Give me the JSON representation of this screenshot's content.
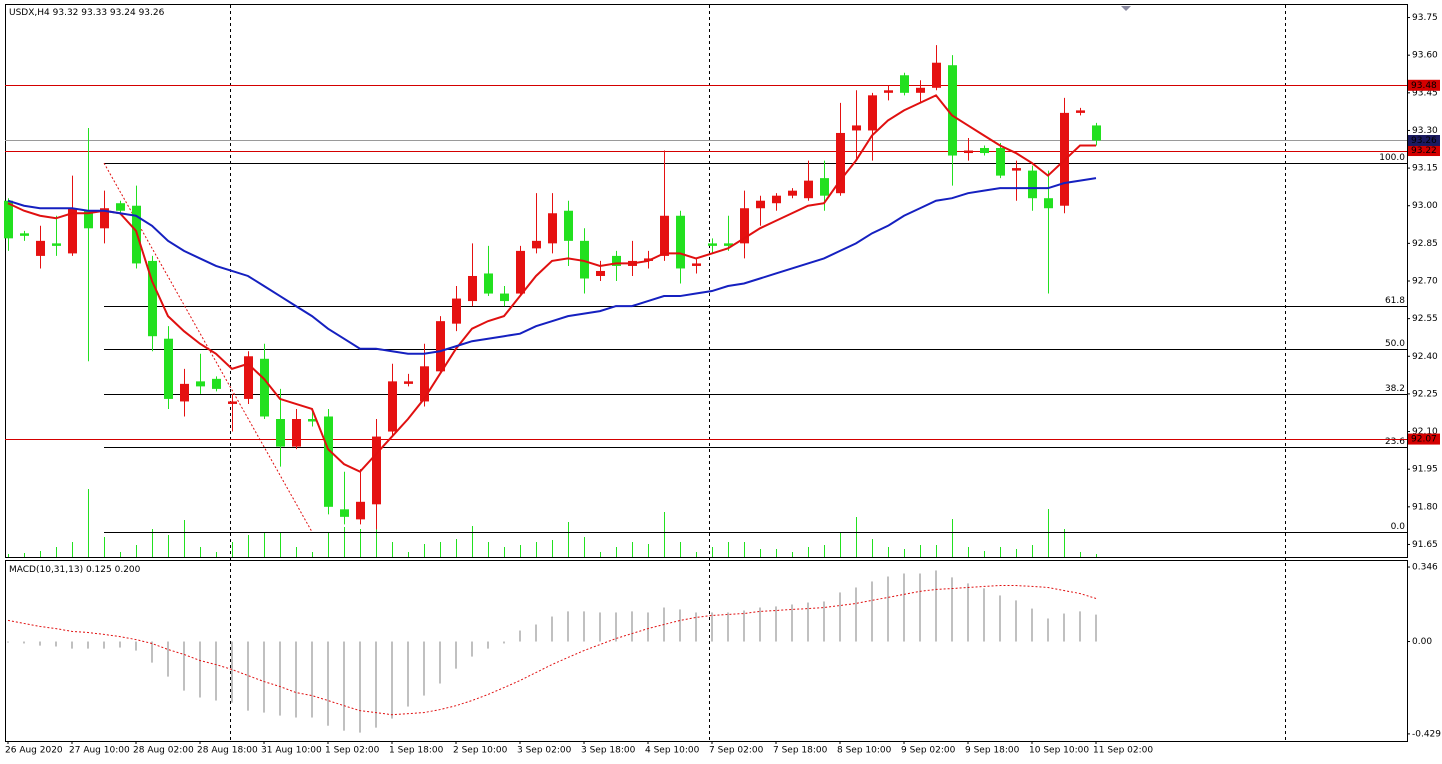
{
  "chart_data": {
    "type": "candlestick",
    "symbol": "USDX,H4",
    "categories": [
      "26 Aug 2020",
      null,
      null,
      null,
      "27 Aug 10:00",
      null,
      null,
      null,
      "28 Aug 02:00",
      null,
      null,
      null,
      "28 Aug 18:00",
      null,
      null,
      null,
      "31 Aug 10:00",
      null,
      null,
      null,
      "1 Sep 02:00",
      null,
      null,
      null,
      "1 Sep 18:00",
      null,
      null,
      null,
      "2 Sep 10:00",
      null,
      null,
      null,
      "3 Sep 02:00",
      null,
      null,
      null,
      "3 Sep 18:00",
      null,
      null,
      null,
      "4 Sep 10:00",
      null,
      null,
      null,
      "7 Sep 02:00",
      null,
      null,
      null,
      "7 Sep 18:00",
      null,
      null,
      null,
      "8 Sep 10:00",
      null,
      null,
      null,
      "9 Sep 02:00",
      null,
      null,
      null,
      "9 Sep 18:00",
      null,
      null,
      null,
      "10 Sep 10:00",
      null,
      null,
      null,
      "11 Sep 02:00"
    ],
    "open": [
      93.02,
      92.89,
      92.8,
      92.85,
      92.81,
      92.98,
      92.91,
      93.01,
      93.0,
      92.78,
      92.47,
      92.22,
      92.3,
      92.31,
      92.21,
      92.23,
      92.39,
      92.15,
      92.04,
      92.15,
      92.16,
      91.79,
      91.75,
      91.81,
      92.1,
      92.29,
      92.22,
      92.34,
      92.53,
      92.62,
      92.73,
      92.65,
      92.65,
      92.83,
      92.85,
      92.98,
      92.86,
      92.72,
      92.8,
      92.76,
      92.78,
      92.8,
      92.96,
      92.76,
      92.85,
      92.85,
      92.85,
      92.99,
      93.01,
      93.04,
      93.03,
      93.11,
      93.05,
      93.3,
      93.3,
      93.45,
      93.52,
      93.45,
      93.47,
      93.56,
      93.21,
      93.23,
      93.23,
      93.14,
      93.14,
      93.03,
      93.0,
      93.37,
      93.32
    ],
    "high": [
      93.03,
      92.9,
      92.92,
      92.96,
      93.12,
      93.31,
      93.06,
      93.02,
      93.08,
      92.8,
      92.52,
      92.35,
      92.41,
      92.32,
      92.25,
      92.42,
      92.45,
      92.27,
      92.19,
      92.19,
      92.19,
      91.94,
      91.95,
      92.15,
      92.37,
      92.33,
      92.45,
      92.56,
      92.68,
      92.85,
      92.84,
      92.68,
      92.84,
      93.05,
      93.05,
      93.02,
      92.91,
      92.78,
      92.82,
      92.86,
      92.82,
      93.22,
      92.98,
      92.79,
      92.87,
      92.96,
      93.06,
      93.04,
      93.05,
      93.07,
      93.18,
      93.18,
      93.41,
      93.46,
      93.45,
      93.48,
      93.53,
      93.5,
      93.64,
      93.6,
      93.27,
      93.24,
      93.25,
      93.18,
      93.16,
      93.14,
      93.43,
      93.39,
      93.33
    ],
    "low": [
      92.82,
      92.86,
      92.75,
      92.8,
      92.8,
      92.38,
      92.85,
      92.97,
      92.75,
      92.42,
      92.19,
      92.16,
      92.25,
      92.26,
      92.1,
      92.21,
      92.15,
      91.96,
      92.03,
      92.12,
      91.77,
      91.73,
      91.73,
      91.71,
      92.08,
      92.28,
      92.2,
      92.33,
      92.5,
      92.6,
      92.64,
      92.6,
      92.64,
      92.81,
      92.81,
      92.76,
      92.65,
      92.7,
      92.7,
      92.72,
      92.75,
      92.78,
      92.69,
      92.73,
      92.81,
      92.82,
      92.79,
      92.92,
      92.98,
      93.03,
      93.02,
      92.98,
      93.04,
      93.18,
      93.18,
      93.42,
      93.44,
      93.41,
      93.46,
      93.08,
      93.18,
      93.2,
      93.11,
      93.02,
      92.98,
      92.65,
      92.97,
      93.36,
      93.24
    ],
    "close": [
      92.87,
      92.88,
      92.86,
      92.84,
      92.99,
      92.91,
      92.99,
      92.98,
      92.77,
      92.48,
      92.23,
      92.29,
      92.28,
      92.27,
      92.22,
      92.4,
      92.16,
      92.04,
      92.15,
      92.14,
      91.8,
      91.76,
      91.82,
      92.08,
      92.3,
      92.3,
      92.36,
      92.54,
      92.63,
      92.72,
      92.65,
      92.62,
      92.82,
      92.86,
      92.97,
      92.86,
      92.71,
      92.74,
      92.76,
      92.78,
      92.79,
      92.96,
      92.75,
      92.77,
      92.84,
      92.84,
      92.99,
      93.02,
      93.04,
      93.06,
      93.1,
      93.04,
      93.29,
      93.32,
      93.44,
      93.46,
      93.45,
      93.47,
      93.57,
      93.2,
      93.22,
      93.21,
      93.12,
      93.15,
      93.03,
      92.99,
      93.37,
      93.38,
      93.26
    ],
    "up_color": "#e51111",
    "down_color": "#22e01f",
    "volume": [
      3,
      4,
      6,
      10,
      15,
      68,
      20,
      5,
      12,
      28,
      22,
      37,
      10,
      5,
      15,
      22,
      25,
      25,
      10,
      5,
      25,
      30,
      28,
      30,
      15,
      5,
      13,
      15,
      18,
      31,
      15,
      10,
      12,
      15,
      17,
      35,
      20,
      5,
      10,
      15,
      13,
      45,
      15,
      5,
      10,
      15,
      15,
      8,
      8,
      5,
      10,
      12,
      25,
      40,
      18,
      10,
      8,
      12,
      12,
      38,
      10,
      6,
      10,
      8,
      12,
      48,
      28,
      5,
      3
    ],
    "volume_color": "#22e01f",
    "moving_averages": [
      {
        "color": "#e01010",
        "values": [
          93.01,
          92.98,
          92.96,
          92.95,
          92.97,
          92.97,
          92.98,
          92.97,
          92.9,
          92.7,
          92.56,
          92.5,
          92.45,
          92.41,
          92.35,
          92.37,
          92.31,
          92.23,
          92.21,
          92.19,
          92.03,
          91.97,
          91.94,
          92.01,
          92.08,
          92.15,
          92.23,
          92.33,
          92.43,
          92.51,
          92.54,
          92.56,
          92.64,
          92.72,
          92.78,
          92.79,
          92.78,
          92.76,
          92.77,
          92.77,
          92.78,
          92.81,
          92.81,
          92.79,
          92.81,
          92.83,
          92.87,
          92.91,
          92.94,
          92.97,
          93.0,
          93.01,
          93.1,
          93.18,
          93.28,
          93.34,
          93.38,
          93.41,
          93.44,
          93.36,
          93.32,
          93.28,
          93.24,
          93.21,
          93.17,
          93.12,
          93.18,
          93.24,
          93.24
        ]
      },
      {
        "color": "#1520c0",
        "values": [
          93.02,
          93.0,
          92.99,
          92.99,
          92.99,
          92.98,
          92.98,
          92.97,
          92.96,
          92.92,
          92.86,
          92.82,
          92.79,
          92.76,
          92.74,
          92.72,
          92.68,
          92.64,
          92.6,
          92.56,
          92.51,
          92.47,
          92.43,
          92.43,
          92.42,
          92.41,
          92.41,
          92.42,
          92.44,
          92.46,
          92.47,
          92.48,
          92.49,
          92.52,
          92.54,
          92.56,
          92.57,
          92.58,
          92.6,
          92.6,
          92.62,
          92.64,
          92.64,
          92.65,
          92.66,
          92.68,
          92.69,
          92.71,
          92.73,
          92.75,
          92.77,
          92.79,
          92.82,
          92.85,
          92.89,
          92.92,
          92.96,
          92.99,
          93.02,
          93.03,
          93.05,
          93.06,
          93.07,
          93.07,
          93.07,
          93.07,
          93.09,
          93.1,
          93.11
        ]
      }
    ],
    "ylim": [
      91.6,
      93.8
    ],
    "yticks": [
      93.75,
      {
        "value": 93.6,
        "label": "93.60"
      },
      93.45,
      {
        "value": 93.3,
        "label": "93.30"
      },
      93.15,
      {
        "value": 93.0,
        "label": "93.00"
      },
      92.85,
      {
        "value": 92.7,
        "label": "92.70"
      },
      92.55,
      {
        "value": 92.4,
        "label": "92.40"
      },
      92.25,
      {
        "value": 92.1,
        "label": "92.10"
      },
      91.95,
      {
        "value": 91.8,
        "label": "91.80"
      },
      91.65
    ],
    "levels": [
      {
        "value": 93.48,
        "color": "#d40000"
      },
      {
        "value": 93.22,
        "color": "#d40000"
      },
      {
        "value": 92.07,
        "color": "#d40000"
      }
    ],
    "bid_color": "#1a1a60",
    "fibonacci": {
      "color": "#000000",
      "trend_color": "#e01010",
      "levels": [
        {
          "label": "100.0",
          "value": 93.17
        },
        {
          "label": "61.8",
          "value": 92.6
        },
        {
          "label": "50.0",
          "value": 92.43
        },
        {
          "label": "38.2",
          "value": 92.25
        },
        {
          "label": "23.6",
          "value": 92.04
        },
        {
          "label": "0.0",
          "value": 91.7
        }
      ]
    },
    "macd": {
      "label": "MACD(10,31,13)",
      "histogram": [
        -0.005,
        -0.009,
        -0.019,
        -0.023,
        -0.033,
        -0.033,
        -0.033,
        -0.028,
        -0.042,
        -0.098,
        -0.163,
        -0.228,
        -0.26,
        -0.274,
        -0.284,
        -0.321,
        -0.33,
        -0.344,
        -0.353,
        -0.353,
        -0.391,
        -0.414,
        -0.423,
        -0.4,
        -0.358,
        -0.302,
        -0.251,
        -0.195,
        -0.126,
        -0.07,
        -0.033,
        -0.009,
        0.051,
        0.079,
        0.116,
        0.14,
        0.14,
        0.135,
        0.135,
        0.14,
        0.135,
        0.158,
        0.149,
        0.135,
        0.135,
        0.135,
        0.144,
        0.158,
        0.163,
        0.172,
        0.181,
        0.186,
        0.228,
        0.251,
        0.279,
        0.302,
        0.316,
        0.316,
        0.33,
        0.298,
        0.27,
        0.247,
        0.214,
        0.191,
        0.153,
        0.107,
        0.13,
        0.14,
        0.125
      ],
      "signal": [
        0.098,
        0.084,
        0.07,
        0.06,
        0.047,
        0.042,
        0.033,
        0.023,
        0.009,
        -0.009,
        -0.037,
        -0.06,
        -0.088,
        -0.107,
        -0.13,
        -0.158,
        -0.186,
        -0.209,
        -0.237,
        -0.251,
        -0.274,
        -0.298,
        -0.321,
        -0.33,
        -0.34,
        -0.335,
        -0.33,
        -0.316,
        -0.298,
        -0.274,
        -0.246,
        -0.214,
        -0.181,
        -0.144,
        -0.107,
        -0.074,
        -0.042,
        -0.014,
        0.014,
        0.037,
        0.06,
        0.079,
        0.098,
        0.112,
        0.121,
        0.126,
        0.13,
        0.14,
        0.144,
        0.149,
        0.153,
        0.158,
        0.167,
        0.177,
        0.191,
        0.205,
        0.219,
        0.233,
        0.242,
        0.246,
        0.251,
        0.256,
        0.26,
        0.26,
        0.256,
        0.251,
        0.237,
        0.223,
        0.2
      ],
      "last_signal_label": "0.200",
      "hist_color": "#c0c0c0",
      "signal_color": "#e01010",
      "y2lim": [
        -0.462,
        0.374
      ],
      "y2ticks": [
        0.346,
        {
          "value": 0,
          "label": "0.00"
        },
        -0.429
      ]
    }
  }
}
